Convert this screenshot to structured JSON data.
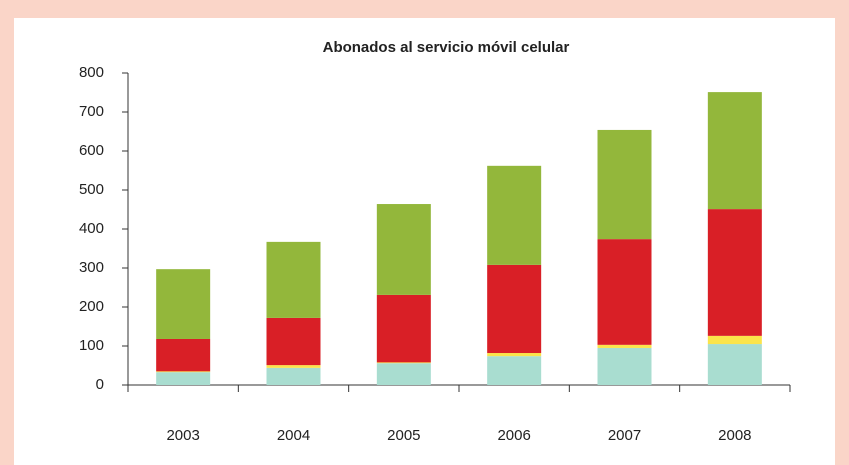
{
  "chart_data": {
    "type": "bar",
    "stacked": true,
    "title": "Abonados al servicio móvil celular",
    "categories": [
      "2003",
      "2004",
      "2005",
      "2006",
      "2007",
      "2008"
    ],
    "series": [
      {
        "color": "#a9ddd0",
        "values": [
          33,
          44,
          56,
          74,
          95,
          105
        ]
      },
      {
        "color": "#fbe44a",
        "values": [
          2,
          7,
          2,
          8,
          8,
          21
        ]
      },
      {
        "color": "#d91f26",
        "values": [
          83,
          121,
          173,
          226,
          271,
          325
        ]
      },
      {
        "color": "#93b73b",
        "values": [
          179,
          195,
          233,
          254,
          280,
          300
        ]
      }
    ],
    "ylim": [
      0,
      800
    ],
    "yticks": [
      0,
      100,
      200,
      300,
      400,
      500,
      600,
      700,
      800
    ],
    "grid": false
  }
}
